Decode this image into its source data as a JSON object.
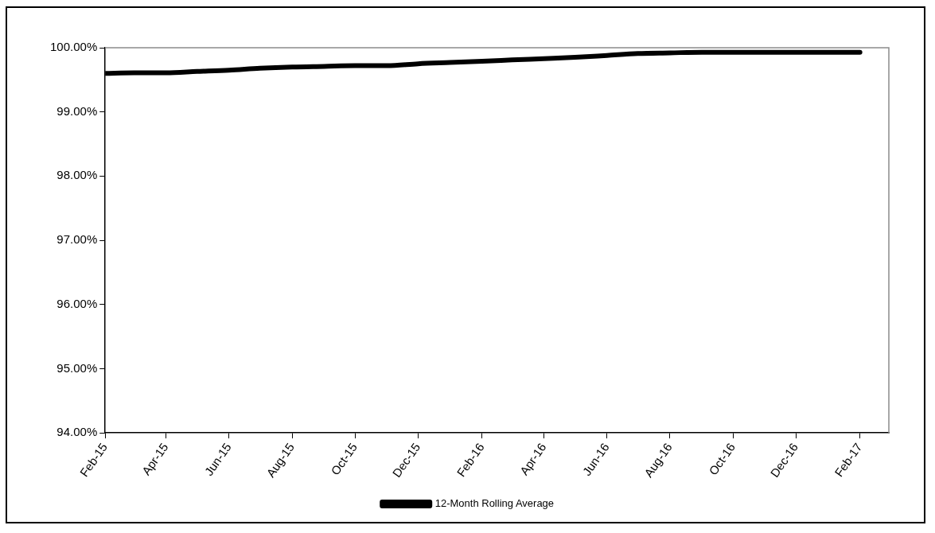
{
  "chart_data": {
    "type": "line",
    "x": [
      "2015-02",
      "2015-03",
      "2015-04",
      "2015-05",
      "2015-06",
      "2015-07",
      "2015-08",
      "2015-09",
      "2015-10",
      "2015-11",
      "2015-12",
      "2016-01",
      "2016-02",
      "2016-03",
      "2016-04",
      "2016-05",
      "2016-06",
      "2016-07",
      "2016-08",
      "2016-09",
      "2016-10",
      "2016-11",
      "2016-12",
      "2017-01",
      "2017-02"
    ],
    "series": [
      {
        "name": "12-Month Rolling Average",
        "color": "#000000",
        "values": [
          99.6,
          99.61,
          99.61,
          99.63,
          99.65,
          99.68,
          99.7,
          99.71,
          99.72,
          99.72,
          99.75,
          99.77,
          99.79,
          99.81,
          99.83,
          99.85,
          99.88,
          99.91,
          99.92,
          99.93,
          99.93,
          99.93,
          99.93,
          99.93,
          99.93
        ]
      }
    ],
    "xlim": [
      "2015-02",
      "2017-03"
    ],
    "xticks": [
      {
        "value": "2015-02",
        "label": "Feb-15"
      },
      {
        "value": "2015-04",
        "label": "Apr-15"
      },
      {
        "value": "2015-06",
        "label": "Jun-15"
      },
      {
        "value": "2015-08",
        "label": "Aug-15"
      },
      {
        "value": "2015-10",
        "label": "Oct-15"
      },
      {
        "value": "2015-12",
        "label": "Dec-15"
      },
      {
        "value": "2016-02",
        "label": "Feb-16"
      },
      {
        "value": "2016-04",
        "label": "Apr-16"
      },
      {
        "value": "2016-06",
        "label": "Jun-16"
      },
      {
        "value": "2016-08",
        "label": "Aug-16"
      },
      {
        "value": "2016-10",
        "label": "Oct-16"
      },
      {
        "value": "2016-12",
        "label": "Dec-16"
      },
      {
        "value": "2017-02",
        "label": "Feb-17"
      }
    ],
    "ylim": [
      94,
      100
    ],
    "yticks": [
      {
        "value": 94,
        "label": "94.00%"
      },
      {
        "value": 95,
        "label": "95.00%"
      },
      {
        "value": 96,
        "label": "96.00%"
      },
      {
        "value": 97,
        "label": "97.00%"
      },
      {
        "value": 98,
        "label": "98.00%"
      },
      {
        "value": 99,
        "label": "99.00%"
      },
      {
        "value": 100,
        "label": "100.00%"
      }
    ],
    "grid": false,
    "legend": "bottom",
    "marker": "none",
    "line_style": "solid"
  }
}
